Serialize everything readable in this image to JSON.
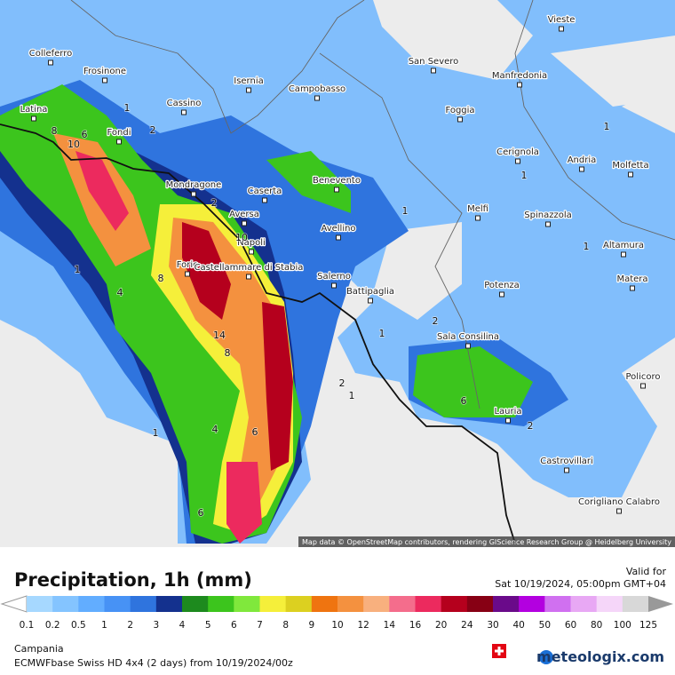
{
  "map": {
    "attribution": "Map data © OpenStreetMap contributors, rendering GIScience Research Group @ Heidelberg University",
    "cities": [
      "Vieste",
      "San Severo",
      "Manfredonia",
      "Colleferro",
      "Frosinone",
      "Isernia",
      "Campobasso",
      "Latina",
      "Cassino",
      "Foggia",
      "Fondi",
      "Cerignola",
      "Andria",
      "Molfetta",
      "Mondragone",
      "Caserta",
      "Benevento",
      "Melfi",
      "Spinazzola",
      "Aversa",
      "Napoli",
      "Avellino",
      "Altamura",
      "Forio",
      "Castellammare di Stabia",
      "Salerno",
      "Battipaglia",
      "Potenza",
      "Matera",
      "Sala Consilina",
      "Lauria",
      "Policoro",
      "Castrovillari",
      "Corigliano Calabro"
    ],
    "contour_labels": [
      8,
      6,
      10,
      1,
      2,
      2,
      10,
      8,
      4,
      14,
      8,
      1,
      1,
      4,
      6,
      6,
      2,
      1,
      1,
      2,
      6,
      1,
      1,
      1,
      1,
      2
    ]
  },
  "legend": {
    "title": "Precipitation, 1h (mm)",
    "valid_label": "Valid for",
    "valid_time": "Sat 10/19/2024, 05:00pm GMT+04",
    "levels": [
      0.1,
      0.2,
      0.5,
      1,
      2,
      3,
      4,
      5,
      6,
      7,
      8,
      9,
      10,
      12,
      14,
      16,
      20,
      24,
      30,
      40,
      50,
      60,
      80,
      100,
      125
    ],
    "colors": [
      "#a6d8ff",
      "#84c4ff",
      "#62adff",
      "#4792f5",
      "#2f74de",
      "#14318e",
      "#1d8a1e",
      "#3cc51d",
      "#80e83c",
      "#f5ef3a",
      "#dcd020",
      "#ef7410",
      "#f4913f",
      "#f8b07e",
      "#f46d8c",
      "#ec2a5e",
      "#b5001d",
      "#870014",
      "#6a0a8a",
      "#b300e0",
      "#d070f0",
      "#e8a8f4",
      "#f5d6f9",
      "#d8d8d8"
    ]
  },
  "footer": {
    "region": "Campania",
    "model": "ECMWFbase Swiss HD 4x4 (2 days) from  10/19/2024/00z",
    "brand": "meteologix.com"
  }
}
